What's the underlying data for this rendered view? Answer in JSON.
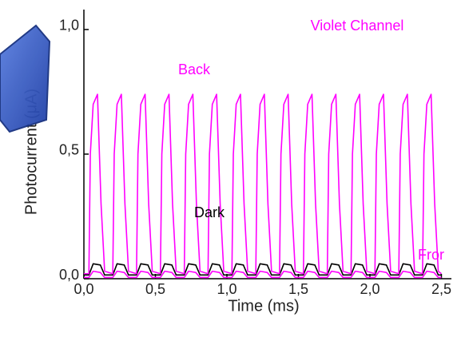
{
  "chart_data": {
    "type": "line",
    "xlabel": "Time (ms)",
    "ylabel": "Photocurrent (μA)",
    "xlim": [
      0,
      2.57
    ],
    "ylim": [
      0,
      1.08
    ],
    "xticks": [
      {
        "value": 0,
        "label": "0,0"
      },
      {
        "value": 0.5,
        "label": "0,5"
      },
      {
        "value": 1,
        "label": "1,0"
      },
      {
        "value": 1.5,
        "label": "1,5"
      },
      {
        "value": 2,
        "label": "2,0"
      },
      {
        "value": 2.5,
        "label": "2,5"
      }
    ],
    "yticks": [
      {
        "value": 0,
        "label": "0,0"
      },
      {
        "value": 0.5,
        "label": "0,5"
      },
      {
        "value": 1,
        "label": "1,0"
      }
    ],
    "annotations": [
      {
        "text": "Violet Channel",
        "color": "#ff00ff"
      },
      {
        "text": "Back",
        "color": "#ff00ff"
      },
      {
        "text": "Dark",
        "color": "#000000"
      },
      {
        "text": "Fror",
        "color": "#ff00ff"
      }
    ],
    "series": [
      {
        "color": "#000000",
        "x": [
          0,
          0.035,
          0.065,
          0.115,
          0.145,
          0.202,
          0.232,
          0.282,
          0.312,
          0.368,
          0.398,
          0.448,
          0.478,
          0.535,
          0.565,
          0.615,
          0.645,
          0.702,
          0.732,
          0.782,
          0.812,
          0.868,
          0.898,
          0.948,
          0.978,
          1.035,
          1.065,
          1.115,
          1.145,
          1.202,
          1.232,
          1.282,
          1.312,
          1.368,
          1.398,
          1.448,
          1.478,
          1.535,
          1.565,
          1.615,
          1.645,
          1.702,
          1.732,
          1.782,
          1.812,
          1.868,
          1.898,
          1.948,
          1.978,
          2.035,
          2.065,
          2.115,
          2.145,
          2.202,
          2.232,
          2.282,
          2.312,
          2.368,
          2.398,
          2.448,
          2.478,
          2.5
        ],
        "values": [
          0.015,
          0.015,
          0.06,
          0.055,
          0.015,
          0.015,
          0.06,
          0.055,
          0.015,
          0.015,
          0.06,
          0.055,
          0.015,
          0.015,
          0.06,
          0.055,
          0.015,
          0.015,
          0.06,
          0.055,
          0.015,
          0.015,
          0.06,
          0.055,
          0.015,
          0.015,
          0.06,
          0.055,
          0.015,
          0.015,
          0.06,
          0.055,
          0.015,
          0.015,
          0.06,
          0.055,
          0.015,
          0.015,
          0.06,
          0.055,
          0.015,
          0.015,
          0.06,
          0.055,
          0.015,
          0.015,
          0.06,
          0.055,
          0.015,
          0.015,
          0.06,
          0.055,
          0.015,
          0.015,
          0.06,
          0.055,
          0.015,
          0.015,
          0.06,
          0.055,
          0.015,
          0.015
        ]
      },
      {
        "color": "#ff00ff",
        "x": [
          0,
          0.035,
          0.065,
          0.115,
          0.145,
          0.202,
          0.232,
          0.282,
          0.312,
          0.368,
          0.398,
          0.448,
          0.478,
          0.535,
          0.565,
          0.615,
          0.645,
          0.702,
          0.732,
          0.782,
          0.812,
          0.868,
          0.898,
          0.948,
          0.978,
          1.035,
          1.065,
          1.115,
          1.145,
          1.202,
          1.232,
          1.282,
          1.312,
          1.368,
          1.398,
          1.448,
          1.478,
          1.535,
          1.565,
          1.615,
          1.645,
          1.702,
          1.732,
          1.782,
          1.812,
          1.868,
          1.898,
          1.948,
          1.978,
          2.035,
          2.065,
          2.115,
          2.145,
          2.202,
          2.232,
          2.282,
          2.312,
          2.368,
          2.398,
          2.448,
          2.478,
          2.5
        ],
        "values": [
          0.005,
          0.005,
          0.03,
          0.025,
          0.005,
          0.005,
          0.03,
          0.025,
          0.005,
          0.005,
          0.03,
          0.025,
          0.005,
          0.005,
          0.03,
          0.025,
          0.005,
          0.005,
          0.03,
          0.025,
          0.005,
          0.005,
          0.03,
          0.025,
          0.005,
          0.005,
          0.03,
          0.025,
          0.005,
          0.005,
          0.03,
          0.025,
          0.005,
          0.005,
          0.03,
          0.025,
          0.005,
          0.005,
          0.03,
          0.025,
          0.005,
          0.005,
          0.03,
          0.025,
          0.005,
          0.005,
          0.03,
          0.025,
          0.005,
          0.005,
          0.03,
          0.025,
          0.005,
          0.005,
          0.03,
          0.025,
          0.005,
          0.005,
          0.03,
          0.025,
          0.005,
          0.005
        ]
      },
      {
        "color": "#ff00ff",
        "x": [
          0,
          0.035,
          0.045,
          0.065,
          0.095,
          0.12,
          0.145,
          0.202,
          0.212,
          0.232,
          0.262,
          0.287,
          0.312,
          0.368,
          0.378,
          0.398,
          0.428,
          0.453,
          0.478,
          0.535,
          0.545,
          0.565,
          0.595,
          0.62,
          0.645,
          0.702,
          0.712,
          0.732,
          0.762,
          0.787,
          0.812,
          0.868,
          0.878,
          0.898,
          0.928,
          0.953,
          0.978,
          1.035,
          1.045,
          1.065,
          1.095,
          1.12,
          1.145,
          1.202,
          1.212,
          1.232,
          1.262,
          1.287,
          1.312,
          1.368,
          1.378,
          1.398,
          1.428,
          1.453,
          1.478,
          1.535,
          1.545,
          1.565,
          1.595,
          1.62,
          1.645,
          1.702,
          1.712,
          1.732,
          1.762,
          1.787,
          1.812,
          1.868,
          1.878,
          1.898,
          1.928,
          1.953,
          1.978,
          2.035,
          2.045,
          2.065,
          2.095,
          2.12,
          2.145,
          2.202,
          2.212,
          2.232,
          2.262,
          2.287,
          2.312,
          2.368,
          2.378,
          2.398,
          2.428,
          2.453,
          2.478,
          2.5
        ],
        "values": [
          0.02,
          0.02,
          0.5,
          0.7,
          0.74,
          0.3,
          0.03,
          0.02,
          0.5,
          0.7,
          0.74,
          0.3,
          0.03,
          0.02,
          0.5,
          0.7,
          0.74,
          0.3,
          0.03,
          0.02,
          0.5,
          0.7,
          0.74,
          0.3,
          0.03,
          0.02,
          0.5,
          0.7,
          0.74,
          0.3,
          0.03,
          0.02,
          0.5,
          0.7,
          0.74,
          0.3,
          0.03,
          0.02,
          0.5,
          0.7,
          0.74,
          0.3,
          0.03,
          0.02,
          0.5,
          0.7,
          0.74,
          0.3,
          0.03,
          0.02,
          0.5,
          0.7,
          0.74,
          0.3,
          0.03,
          0.02,
          0.5,
          0.7,
          0.74,
          0.3,
          0.03,
          0.02,
          0.5,
          0.7,
          0.74,
          0.3,
          0.03,
          0.02,
          0.5,
          0.7,
          0.74,
          0.3,
          0.03,
          0.02,
          0.5,
          0.7,
          0.74,
          0.3,
          0.03,
          0.02,
          0.5,
          0.7,
          0.74,
          0.3,
          0.03,
          0.02,
          0.5,
          0.7,
          0.74,
          0.3,
          0.03,
          0.02
        ]
      }
    ]
  }
}
